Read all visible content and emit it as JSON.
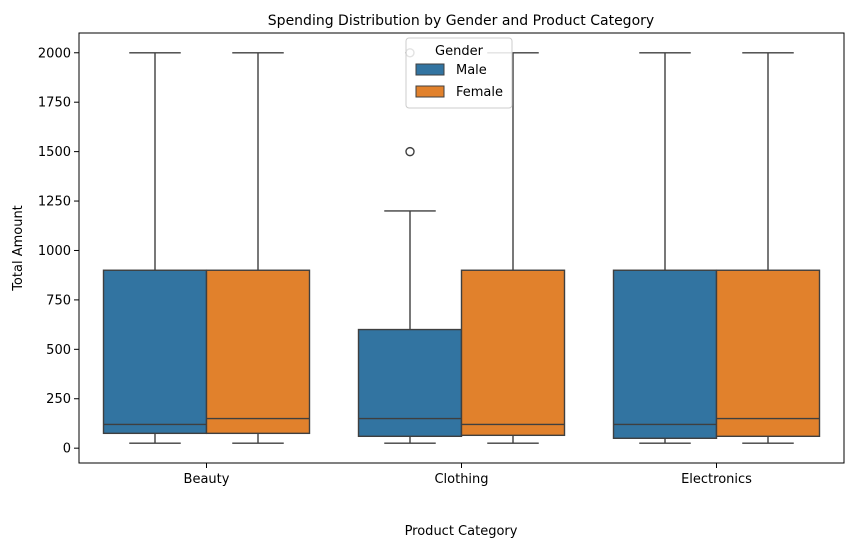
{
  "chart_data": {
    "type": "box",
    "title": "Spending Distribution by Gender and Product Category",
    "xlabel": "Product Category",
    "ylabel": "Total Amount",
    "categories": [
      "Beauty",
      "Clothing",
      "Electronics"
    ],
    "ylim": [
      -75,
      2100
    ],
    "yticks": [
      0,
      250,
      500,
      750,
      1000,
      1250,
      1500,
      1750,
      2000
    ],
    "grid": false,
    "legend": {
      "title": "Gender",
      "position": "top-center"
    },
    "series": [
      {
        "name": "Male",
        "color": "#3274a1",
        "boxes": [
          {
            "category": "Beauty",
            "whisker_low": 25,
            "q1": 75,
            "median": 120,
            "q3": 900,
            "whisker_high": 2000,
            "outliers": []
          },
          {
            "category": "Clothing",
            "whisker_low": 25,
            "q1": 60,
            "median": 150,
            "q3": 600,
            "whisker_high": 1200,
            "outliers": [
              1500,
              2000
            ]
          },
          {
            "category": "Electronics",
            "whisker_low": 25,
            "q1": 50,
            "median": 120,
            "q3": 900,
            "whisker_high": 2000,
            "outliers": []
          }
        ]
      },
      {
        "name": "Female",
        "color": "#e1812c",
        "boxes": [
          {
            "category": "Beauty",
            "whisker_low": 25,
            "q1": 75,
            "median": 150,
            "q3": 900,
            "whisker_high": 2000,
            "outliers": []
          },
          {
            "category": "Clothing",
            "whisker_low": 25,
            "q1": 65,
            "median": 120,
            "q3": 900,
            "whisker_high": 2000,
            "outliers": []
          },
          {
            "category": "Electronics",
            "whisker_low": 25,
            "q1": 60,
            "median": 150,
            "q3": 900,
            "whisker_high": 2000,
            "outliers": []
          }
        ]
      }
    ]
  }
}
